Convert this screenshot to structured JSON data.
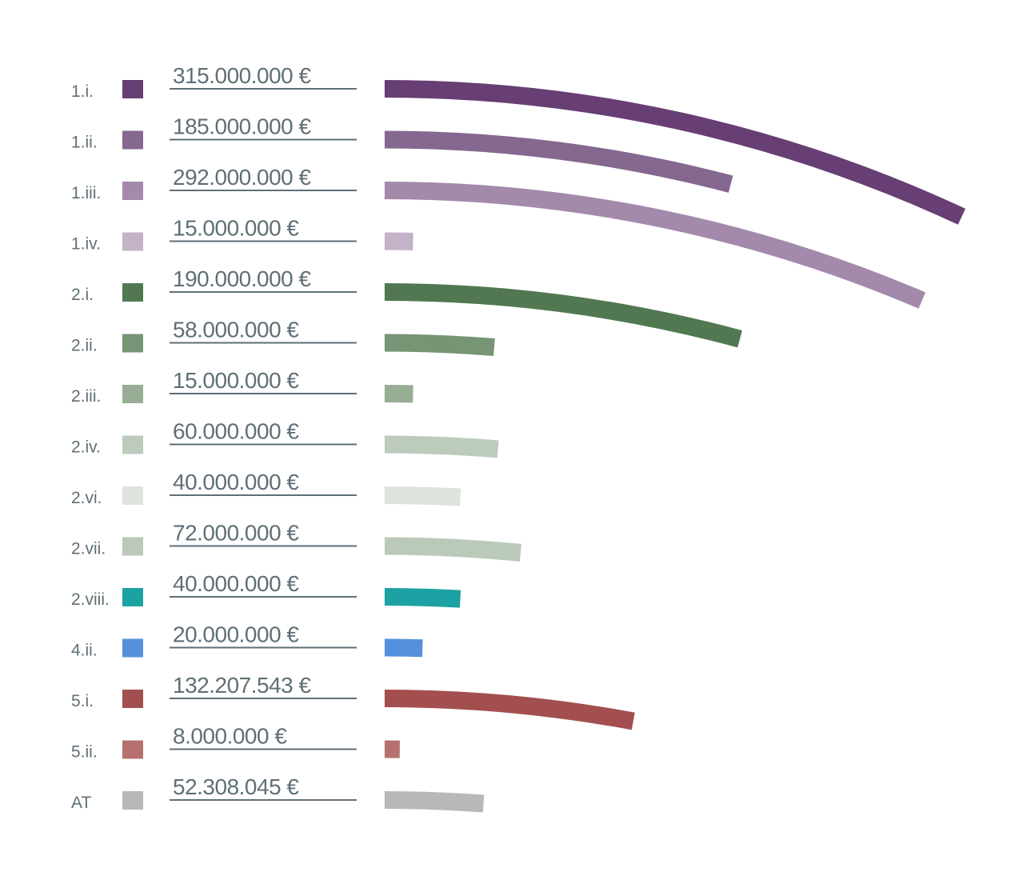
{
  "chart_data": {
    "type": "bar",
    "title": "",
    "style": "radial arc bars, length proportional to value",
    "unit": "€",
    "categories": [
      "1.i.",
      "1.ii.",
      "1.iii.",
      "1.iv.",
      "2.i.",
      "2.ii.",
      "2.iii.",
      "2.iv.",
      "2.vi.",
      "2.vii.",
      "2.viii.",
      "4.ii.",
      "5.i.",
      "5.ii.",
      "AT"
    ],
    "values": [
      315000000,
      185000000,
      292000000,
      15000000,
      190000000,
      58000000,
      15000000,
      60000000,
      40000000,
      72000000,
      40000000,
      20000000,
      132207543,
      8000000,
      52308045
    ],
    "value_labels": [
      "315.000.000 €",
      "185.000.000 €",
      "292.000.000 €",
      "15.000.000 €",
      "190.000.000 €",
      "58.000.000 €",
      "15.000.000 €",
      "60.000.000 €",
      "40.000.000 €",
      "72.000.000 €",
      "40.000.000 €",
      "20.000.000 €",
      "132.207.543 €",
      "8.000.000 €",
      "52.308.045 €"
    ],
    "colors": [
      "#673f74",
      "#84688f",
      "#a38aab",
      "#c4b2c8",
      "#527852",
      "#779474",
      "#97ae94",
      "#bccbbc",
      "#dde3dd",
      "#bac9b9",
      "#1ca2a2",
      "#5590dd",
      "#a34f4f",
      "#b57170",
      "#b8b8b8"
    ]
  }
}
